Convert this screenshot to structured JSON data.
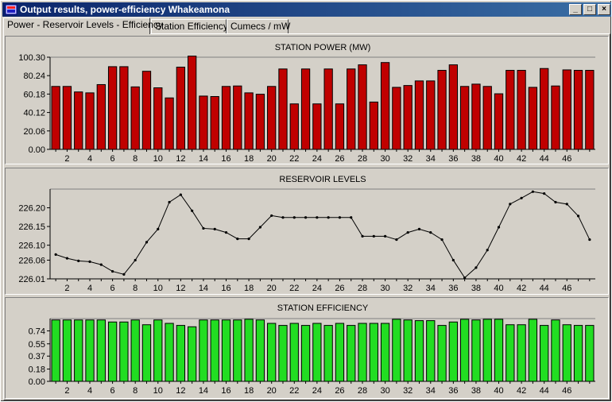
{
  "window": {
    "title": "Output results, power-efficiency Whakeamona",
    "buttons": [
      "_",
      "□",
      "×"
    ]
  },
  "tabs": [
    {
      "label": "Power - Reservoir Levels - Efficiency",
      "active": true
    },
    {
      "label": "Station Efficiency",
      "active": false
    },
    {
      "label": "Cumecs / mW",
      "active": false
    }
  ],
  "chart_data": [
    {
      "type": "bar",
      "title": "STATION POWER (MW)",
      "color": "#c00000",
      "categories": [
        1,
        2,
        3,
        4,
        5,
        6,
        7,
        8,
        9,
        10,
        11,
        12,
        13,
        14,
        15,
        16,
        17,
        18,
        19,
        20,
        21,
        22,
        23,
        24,
        25,
        26,
        27,
        28,
        29,
        30,
        31,
        32,
        33,
        34,
        35,
        36,
        37,
        38,
        39,
        40,
        41,
        42,
        43,
        44,
        45,
        46,
        47,
        48
      ],
      "x_tick_labels": [
        "2",
        "4",
        "6",
        "8",
        "10",
        "12",
        "14",
        "16",
        "18",
        "20",
        "22",
        "24",
        "26",
        "28",
        "30",
        "32",
        "34",
        "36",
        "38",
        "40",
        "42",
        "44",
        "46"
      ],
      "y_tick_labels": [
        "100.30",
        "80.24",
        "60.18",
        "40.12",
        "20.06",
        "0.00"
      ],
      "ylim": [
        0,
        100.3
      ],
      "values": [
        68.5,
        68.5,
        62.5,
        61.5,
        70.5,
        90,
        90,
        68,
        85,
        67,
        56,
        89.5,
        101.5,
        58,
        57.5,
        68.5,
        69,
        61.5,
        60,
        68.5,
        87.5,
        49.5,
        87.5,
        49.5,
        87.5,
        49.5,
        87.5,
        92,
        51.5,
        94.5,
        67.5,
        69.5,
        74.5,
        74.5,
        86,
        92,
        68.5,
        71,
        68.5,
        60.5,
        86,
        86,
        67.5,
        88,
        69,
        86.5,
        86,
        86
      ]
    },
    {
      "type": "line",
      "title": "RESERVOIR LEVELS",
      "color": "#000000",
      "categories": [
        1,
        2,
        3,
        4,
        5,
        6,
        7,
        8,
        9,
        10,
        11,
        12,
        13,
        14,
        15,
        16,
        17,
        18,
        19,
        20,
        21,
        22,
        23,
        24,
        25,
        26,
        27,
        28,
        29,
        30,
        31,
        32,
        33,
        34,
        35,
        36,
        37,
        38,
        39,
        40,
        41,
        42,
        43,
        44,
        45,
        46,
        47,
        48
      ],
      "x_tick_labels": [
        "2",
        "4",
        "6",
        "8",
        "10",
        "12",
        "14",
        "16",
        "18",
        "20",
        "22",
        "24",
        "26",
        "28",
        "30",
        "32",
        "34",
        "36",
        "38",
        "40",
        "42",
        "44",
        "46"
      ],
      "y_tick_labels": [
        "226.20",
        "226.15",
        "226.10",
        "226.06",
        "226.01"
      ],
      "y_tick_values": [
        226.2,
        226.15,
        226.1,
        226.06,
        226.01
      ],
      "ylim": [
        226.01,
        226.25
      ],
      "values": [
        226.075,
        226.065,
        226.058,
        226.056,
        226.048,
        226.03,
        226.022,
        226.06,
        226.108,
        226.143,
        226.215,
        226.235,
        226.192,
        226.145,
        226.143,
        226.134,
        226.117,
        226.117,
        226.148,
        226.179,
        226.174,
        226.174,
        226.174,
        226.174,
        226.174,
        226.174,
        226.174,
        226.124,
        226.124,
        226.124,
        226.115,
        226.134,
        226.143,
        226.134,
        226.115,
        226.06,
        226.013,
        226.04,
        226.087,
        226.148,
        226.21,
        226.226,
        226.243,
        226.238,
        226.215,
        226.21,
        226.178,
        226.115
      ]
    },
    {
      "type": "bar",
      "title": "STATION EFFICIENCY",
      "color": "#22dd22",
      "categories": [
        1,
        2,
        3,
        4,
        5,
        6,
        7,
        8,
        9,
        10,
        11,
        12,
        13,
        14,
        15,
        16,
        17,
        18,
        19,
        20,
        21,
        22,
        23,
        24,
        25,
        26,
        27,
        28,
        29,
        30,
        31,
        32,
        33,
        34,
        35,
        36,
        37,
        38,
        39,
        40,
        41,
        42,
        43,
        44,
        45,
        46,
        47,
        48
      ],
      "x_tick_labels": [
        "2",
        "4",
        "6",
        "8",
        "10",
        "12",
        "14",
        "16",
        "18",
        "20",
        "22",
        "24",
        "26",
        "28",
        "30",
        "32",
        "34",
        "36",
        "38",
        "40",
        "42",
        "44",
        "46"
      ],
      "y_tick_labels": [
        "0.74",
        "0.55",
        "0.37",
        "0.18",
        "0.00"
      ],
      "y_tick_values": [
        0.74,
        0.55,
        0.37,
        0.18,
        0.0
      ],
      "ylim": [
        0,
        0.92
      ],
      "values": [
        0.9,
        0.9,
        0.9,
        0.9,
        0.9,
        0.87,
        0.87,
        0.9,
        0.83,
        0.9,
        0.85,
        0.82,
        0.8,
        0.9,
        0.9,
        0.9,
        0.9,
        0.91,
        0.9,
        0.85,
        0.82,
        0.85,
        0.82,
        0.85,
        0.82,
        0.85,
        0.82,
        0.85,
        0.85,
        0.85,
        0.91,
        0.9,
        0.89,
        0.89,
        0.82,
        0.87,
        0.91,
        0.9,
        0.91,
        0.91,
        0.83,
        0.83,
        0.91,
        0.82,
        0.9,
        0.83,
        0.82,
        0.82
      ]
    }
  ]
}
